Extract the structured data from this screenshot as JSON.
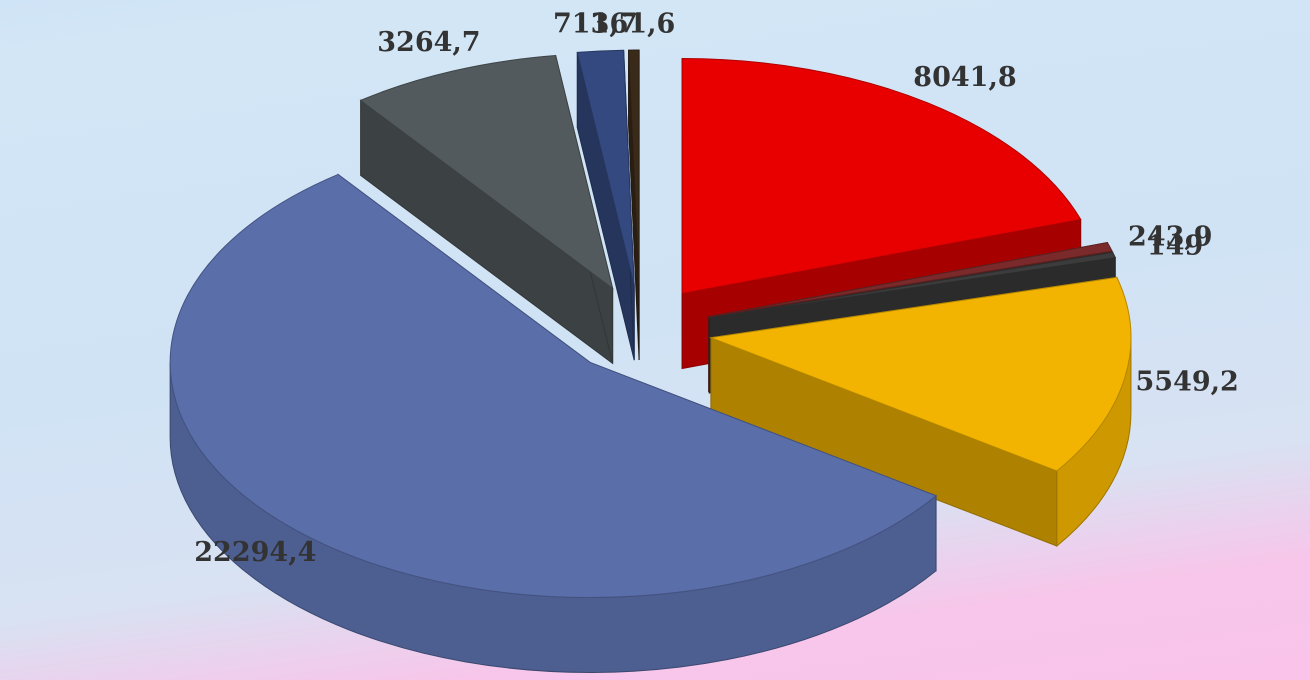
{
  "chart_data": {
    "type": "pie",
    "values": [
      8041.8,
      243.9,
      149,
      5549.2,
      22294.4,
      3264.7,
      713.7,
      161.6
    ],
    "value_labels": [
      "8041,8",
      "243,9",
      "149",
      "5549,2",
      "22294,4",
      "3264,7",
      "713,7",
      "161,6"
    ],
    "colors": [
      "#e80000",
      "#7a2a2a",
      "#3c3c3c",
      "#f2b400",
      "#5a6eaa",
      "#535a5d",
      "#34497f",
      "#3a2a1a"
    ]
  }
}
